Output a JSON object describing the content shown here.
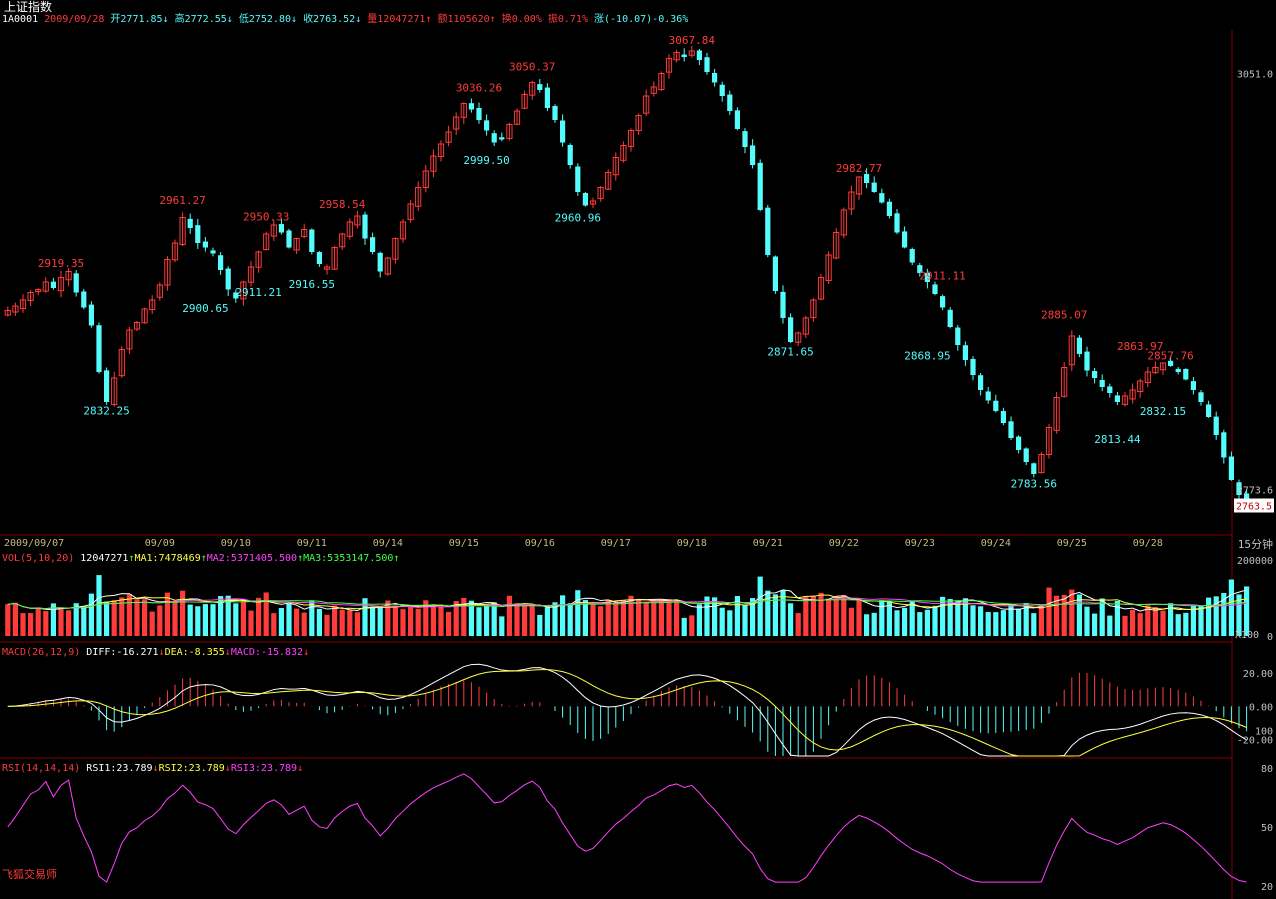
{
  "title": "上证指数",
  "header": {
    "code": "1A0001",
    "date": "2009/09/28",
    "open": "开2771.85",
    "high": "高2772.55",
    "low": "低2752.80",
    "close": "收2763.52",
    "volume": "量12047271",
    "amount": "额1105620",
    "turnover": "换0.00%",
    "amplitude": "振0.71%",
    "change": "涨(-10.07)-0.36%"
  },
  "footer_label": "飞狐交易师",
  "colors": {
    "up": "#ff3b3b",
    "down": "#54fcfc",
    "ma1": "#ffffff",
    "ma2": "#ffff40",
    "ma3": "#ff40ff",
    "ma4": "#40ff40",
    "axis": "#bfbf7f",
    "grid": "#7f0000",
    "price_axis_text": "#c0c0c0"
  },
  "chart_data": [
    {
      "type": "candlestick",
      "name": "price",
      "period_label": "15分钟",
      "start_date_label": "2009/09/07",
      "ylim": [
        2750,
        3080
      ],
      "yticks": [
        {
          "value": 3051.0,
          "label": "3051.0"
        },
        {
          "value": 2773.6,
          "label": "2773.6"
        }
      ],
      "last_price_label": "2763.5",
      "date_ticks": [
        {
          "index": 0,
          "label": "2009/09/07"
        },
        {
          "index": 20,
          "label": "09/09"
        },
        {
          "index": 30,
          "label": "09/10"
        },
        {
          "index": 40,
          "label": "09/11"
        },
        {
          "index": 50,
          "label": "09/14"
        },
        {
          "index": 60,
          "label": "09/15"
        },
        {
          "index": 70,
          "label": "09/16"
        },
        {
          "index": 80,
          "label": "09/17"
        },
        {
          "index": 90,
          "label": "09/18"
        },
        {
          "index": 100,
          "label": "09/21"
        },
        {
          "index": 110,
          "label": "09/22"
        },
        {
          "index": 120,
          "label": "09/23"
        },
        {
          "index": 130,
          "label": "09/24"
        },
        {
          "index": 140,
          "label": "09/25"
        },
        {
          "index": 150,
          "label": "09/28"
        }
      ],
      "close": [
        2893,
        2896,
        2900,
        2905,
        2907,
        2912,
        2908,
        2915,
        2919,
        2905,
        2895,
        2883,
        2852,
        2832,
        2848,
        2867,
        2880,
        2885,
        2894,
        2900,
        2910,
        2927,
        2938,
        2955,
        2948,
        2938,
        2935,
        2931,
        2920,
        2907,
        2901,
        2912,
        2922,
        2932,
        2944,
        2950,
        2945,
        2935,
        2941,
        2947,
        2932,
        2924,
        2922,
        2935,
        2944,
        2952,
        2956,
        2941,
        2932,
        2919,
        2928,
        2941,
        2952,
        2964,
        2975,
        2986,
        2996,
        3004,
        3012,
        3022,
        3031,
        3027,
        3020,
        3013,
        3005,
        3007,
        3017,
        3026,
        3037,
        3045,
        3040,
        3028,
        3020,
        3005,
        2990,
        2972,
        2963,
        2966,
        2975,
        2985,
        2995,
        3003,
        3013,
        3023,
        3036,
        3042,
        3051,
        3061,
        3065,
        3062,
        3066,
        3060,
        3052,
        3045,
        3036,
        3026,
        3014,
        3002,
        2990,
        2960,
        2930,
        2906,
        2888,
        2872,
        2878,
        2888,
        2900,
        2915,
        2930,
        2945,
        2960,
        2972,
        2982,
        2978,
        2972,
        2965,
        2956,
        2945,
        2935,
        2925,
        2918,
        2912,
        2904,
        2895,
        2882,
        2870,
        2860,
        2850,
        2840,
        2833,
        2826,
        2818,
        2808,
        2800,
        2792,
        2784,
        2797,
        2815,
        2835,
        2855,
        2876,
        2864,
        2853,
        2848,
        2842,
        2838,
        2832,
        2836,
        2840,
        2846,
        2852,
        2855,
        2858,
        2856,
        2852,
        2847,
        2840,
        2832,
        2822,
        2810,
        2795,
        2780,
        2770,
        2763
      ],
      "high_labels": [
        {
          "index": 7,
          "value": "2919.35"
        },
        {
          "index": 23,
          "value": "2961.27"
        },
        {
          "index": 34,
          "value": "2950.33"
        },
        {
          "index": 44,
          "value": "2958.54"
        },
        {
          "index": 62,
          "value": "3036.26"
        },
        {
          "index": 69,
          "value": "3050.37"
        },
        {
          "index": 90,
          "value": "3067.84"
        },
        {
          "index": 112,
          "value": "2982.77"
        },
        {
          "index": 123,
          "value": "2911.11"
        },
        {
          "index": 139,
          "value": "2885.07"
        },
        {
          "index": 149,
          "value": "2863.97"
        },
        {
          "index": 153,
          "value": "2857.76"
        }
      ],
      "low_labels": [
        {
          "index": 13,
          "value": "2832.25"
        },
        {
          "index": 26,
          "value": "2900.65"
        },
        {
          "index": 33,
          "value": "2911.21"
        },
        {
          "index": 40,
          "value": "2916.55"
        },
        {
          "index": 63,
          "value": "2999.50"
        },
        {
          "index": 75,
          "value": "2960.96"
        },
        {
          "index": 103,
          "value": "2871.65"
        },
        {
          "index": 121,
          "value": "2868.95"
        },
        {
          "index": 135,
          "value": "2783.56"
        },
        {
          "index": 146,
          "value": "2813.44"
        },
        {
          "index": 152,
          "value": "2832.15"
        }
      ]
    },
    {
      "type": "bar",
      "name": "VOL",
      "indicator_label": "VOL(5,10,20)",
      "values_label": [
        {
          "text": "12047271",
          "arrow": "↑",
          "color": "#ffffff"
        },
        {
          "text": "MA1:7478469",
          "arrow": "↑",
          "color": "#ffff40"
        },
        {
          "text": "MA2:5371405.500",
          "arrow": "↑",
          "color": "#ff40ff"
        },
        {
          "text": "MA3:5353147.500",
          "arrow": "↑",
          "color": "#40ff40"
        }
      ],
      "ylim": [
        0,
        200000
      ],
      "yticks": [
        {
          "value": 200000,
          "label": "200000"
        },
        {
          "value": 0,
          "label": "0"
        }
      ],
      "unit_label": "X100"
    },
    {
      "type": "line",
      "name": "MACD",
      "indicator_label": "MACD(26,12,9)",
      "values_label": [
        {
          "text": "DIFF:-16.271",
          "arrow": "↓",
          "color": "#ffffff"
        },
        {
          "text": "DEA:-8.355",
          "arrow": "↓",
          "color": "#ffff40"
        },
        {
          "text": "MACD:-15.832",
          "arrow": "↓",
          "color": "#ff40ff"
        }
      ],
      "ylim": [
        -30,
        28
      ],
      "yticks": [
        {
          "value": 20,
          "label": "20.00"
        },
        {
          "value": 0,
          "label": "0.00"
        },
        {
          "value": -20,
          "label": "-20.00"
        }
      ],
      "extra_tick": "100"
    },
    {
      "type": "line",
      "name": "RSI",
      "indicator_label": "RSI(14,14,14)",
      "values_label": [
        {
          "text": "RSI1:23.789",
          "arrow": "↓",
          "color": "#ffffff"
        },
        {
          "text": "RSI2:23.789",
          "arrow": "↓",
          "color": "#ffff40"
        },
        {
          "text": "RSI3:23.789",
          "arrow": "↓",
          "color": "#ff40ff"
        }
      ],
      "ylim": [
        18,
        84
      ],
      "yticks": [
        {
          "value": 80,
          "label": "80"
        },
        {
          "value": 50,
          "label": "50"
        },
        {
          "value": 20,
          "label": "20"
        }
      ]
    }
  ]
}
